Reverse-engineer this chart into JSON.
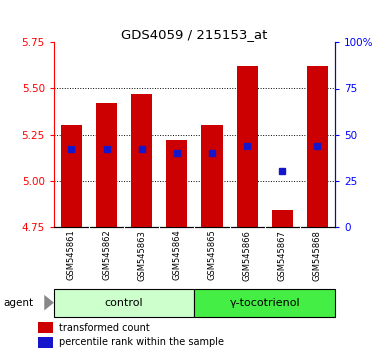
{
  "title": "GDS4059 / 215153_at",
  "samples": [
    "GSM545861",
    "GSM545862",
    "GSM545863",
    "GSM545864",
    "GSM545865",
    "GSM545866",
    "GSM545867",
    "GSM545868"
  ],
  "transformed_counts": [
    5.3,
    5.42,
    5.47,
    5.22,
    5.3,
    5.62,
    4.84,
    5.62
  ],
  "percentile_ranks": [
    42,
    42,
    42,
    40,
    40,
    44,
    30,
    44
  ],
  "y_min": 4.75,
  "y_max": 5.75,
  "y_ticks": [
    4.75,
    5.0,
    5.25,
    5.5,
    5.75
  ],
  "right_y_ticks": [
    0,
    25,
    50,
    75,
    100
  ],
  "right_y_labels": [
    "0",
    "25",
    "50",
    "75",
    "100%"
  ],
  "bar_color": "#CC0000",
  "blue_color": "#1515CC",
  "control_bg": "#CCFFCC",
  "treatment_bg": "#44EE44",
  "xlabel_area_bg": "#C8C8C8",
  "bar_width": 0.6,
  "bar_base": 4.75,
  "n_control": 4,
  "n_treatment": 4,
  "control_label": "control",
  "treatment_label": "γ-tocotrienol",
  "legend_red": "transformed count",
  "legend_blue": "percentile rank within the sample",
  "agent_label": "agent"
}
